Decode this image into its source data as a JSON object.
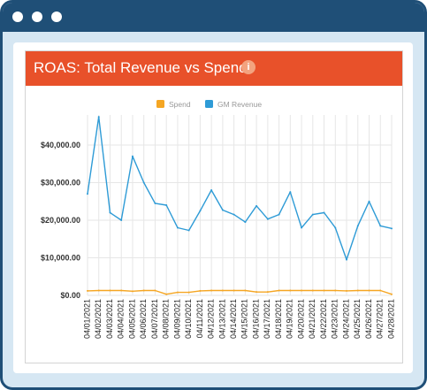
{
  "window": {
    "dots": 3,
    "frame_color": "#1f4f77",
    "background_color": "#d6e7f3"
  },
  "card": {
    "title": "ROAS: Total Revenue vs Spend",
    "info_icon": "i",
    "header_color": "#e8512a"
  },
  "chart_data": {
    "type": "line",
    "title": "ROAS: Total Revenue vs Spend",
    "legend_position": "top",
    "grid": true,
    "ylim": [
      0,
      48000
    ],
    "yticks": [
      0,
      10000,
      20000,
      30000,
      40000
    ],
    "ytick_labels": [
      "$0.00",
      "$10,000.00",
      "$20,000.00",
      "$30,000.00",
      "$40,000.00"
    ],
    "categories": [
      "04/01/2021",
      "04/02/2021",
      "04/03/2021",
      "04/04/2021",
      "04/05/2021",
      "04/06/2021",
      "04/07/2021",
      "04/08/2021",
      "04/09/2021",
      "04/10/2021",
      "04/11/2021",
      "04/12/2021",
      "04/13/2021",
      "04/14/2021",
      "04/15/2021",
      "04/16/2021",
      "04/17/2021",
      "04/18/2021",
      "04/19/2021",
      "04/20/2021",
      "04/21/2021",
      "04/22/2021",
      "04/23/2021",
      "04/24/2021",
      "04/25/2021",
      "04/26/2021",
      "04/27/2021",
      "04/28/2021"
    ],
    "series": [
      {
        "name": "Spend",
        "color": "#f5a623",
        "values": [
          1200,
          1300,
          1300,
          1300,
          1100,
          1300,
          1300,
          300,
          800,
          800,
          1200,
          1300,
          1300,
          1300,
          1300,
          900,
          900,
          1300,
          1300,
          1300,
          1300,
          1300,
          1300,
          1200,
          1300,
          1300,
          1300,
          300
        ]
      },
      {
        "name": "GM Revenue",
        "color": "#2e9bd6",
        "values": [
          27000,
          47500,
          22000,
          20000,
          37000,
          30000,
          24500,
          24000,
          18000,
          17300,
          22500,
          28000,
          22700,
          21500,
          19500,
          23800,
          20300,
          21500,
          27500,
          18000,
          21500,
          22000,
          18000,
          9500,
          18500,
          25000,
          18500,
          17800
        ]
      }
    ]
  }
}
